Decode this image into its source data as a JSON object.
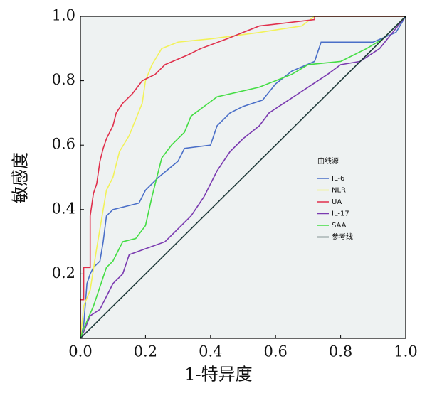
{
  "chart_data": {
    "type": "line",
    "x_label": "1-特异度",
    "y_label": "敏感度",
    "legend_title": "曲线源",
    "xlim": [
      0,
      1
    ],
    "ylim": [
      0,
      1
    ],
    "xticks": [
      {
        "value": 0,
        "label": "0.0"
      },
      0.2,
      0.4,
      0.6,
      0.8,
      {
        "value": 1,
        "label": "1.0"
      }
    ],
    "yticks": [
      0.2,
      0.4,
      0.6,
      0.8,
      {
        "value": 1,
        "label": "1.0"
      }
    ],
    "series": [
      {
        "name": "IL-6",
        "color": "#4a6fc8",
        "x": [
          0,
          0.01,
          0.02,
          0.03,
          0.04,
          0.06,
          0.07,
          0.08,
          0.1,
          0.18,
          0.2,
          0.24,
          0.3,
          0.32,
          0.4,
          0.42,
          0.46,
          0.5,
          0.56,
          0.6,
          0.65,
          0.72,
          0.74,
          0.9,
          0.97,
          1
        ],
        "values": [
          0,
          0.04,
          0.17,
          0.2,
          0.22,
          0.24,
          0.3,
          0.38,
          0.4,
          0.42,
          0.46,
          0.5,
          0.55,
          0.59,
          0.6,
          0.66,
          0.7,
          0.72,
          0.74,
          0.79,
          0.83,
          0.86,
          0.92,
          0.92,
          0.95,
          1
        ]
      },
      {
        "name": "NLR",
        "color": "#f2f25a",
        "x": [
          0,
          0.01,
          0.03,
          0.05,
          0.07,
          0.08,
          0.1,
          0.12,
          0.15,
          0.17,
          0.19,
          0.2,
          0.22,
          0.25,
          0.3,
          0.4,
          0.55,
          0.68,
          0.72,
          1
        ],
        "values": [
          0,
          0.1,
          0.15,
          0.28,
          0.4,
          0.46,
          0.5,
          0.58,
          0.63,
          0.68,
          0.73,
          0.8,
          0.85,
          0.9,
          0.92,
          0.93,
          0.95,
          0.97,
          1,
          1
        ]
      },
      {
        "name": "UA",
        "color": "#e0304c",
        "x": [
          0,
          0,
          0.01,
          0.01,
          0.03,
          0.03,
          0.04,
          0.05,
          0.06,
          0.07,
          0.08,
          0.1,
          0.11,
          0.13,
          0.16,
          0.19,
          0.23,
          0.26,
          0.33,
          0.37,
          0.45,
          0.5,
          0.55,
          0.72,
          0.72,
          1
        ],
        "values": [
          0,
          0.12,
          0.12,
          0.22,
          0.22,
          0.38,
          0.45,
          0.48,
          0.55,
          0.59,
          0.62,
          0.66,
          0.7,
          0.73,
          0.76,
          0.8,
          0.82,
          0.85,
          0.88,
          0.9,
          0.93,
          0.95,
          0.97,
          0.99,
          1,
          1
        ]
      },
      {
        "name": "IL-17",
        "color": "#7a3ab0",
        "x": [
          0,
          0.01,
          0.03,
          0.06,
          0.08,
          0.1,
          0.13,
          0.15,
          0.26,
          0.3,
          0.34,
          0.38,
          0.4,
          0.42,
          0.46,
          0.5,
          0.55,
          0.58,
          0.64,
          0.7,
          0.76,
          0.8,
          0.86,
          0.92,
          0.96,
          1
        ],
        "values": [
          0,
          0.02,
          0.07,
          0.09,
          0.13,
          0.17,
          0.2,
          0.26,
          0.3,
          0.34,
          0.38,
          0.44,
          0.48,
          0.52,
          0.58,
          0.62,
          0.66,
          0.7,
          0.74,
          0.78,
          0.82,
          0.85,
          0.86,
          0.9,
          0.95,
          1
        ]
      },
      {
        "name": "SAA",
        "color": "#44dd44",
        "x": [
          0,
          0.01,
          0.04,
          0.06,
          0.08,
          0.1,
          0.13,
          0.17,
          0.2,
          0.22,
          0.25,
          0.28,
          0.32,
          0.34,
          0.38,
          0.42,
          0.55,
          0.6,
          0.65,
          0.7,
          0.8,
          0.88,
          0.93,
          1
        ],
        "values": [
          0,
          0.03,
          0.1,
          0.16,
          0.22,
          0.24,
          0.3,
          0.31,
          0.35,
          0.44,
          0.56,
          0.6,
          0.64,
          0.69,
          0.72,
          0.75,
          0.78,
          0.8,
          0.82,
          0.85,
          0.86,
          0.9,
          0.93,
          1
        ]
      },
      {
        "name": "参考线",
        "color": "#1f3a3a",
        "x": [
          0,
          1
        ],
        "values": [
          0,
          1
        ]
      }
    ]
  }
}
